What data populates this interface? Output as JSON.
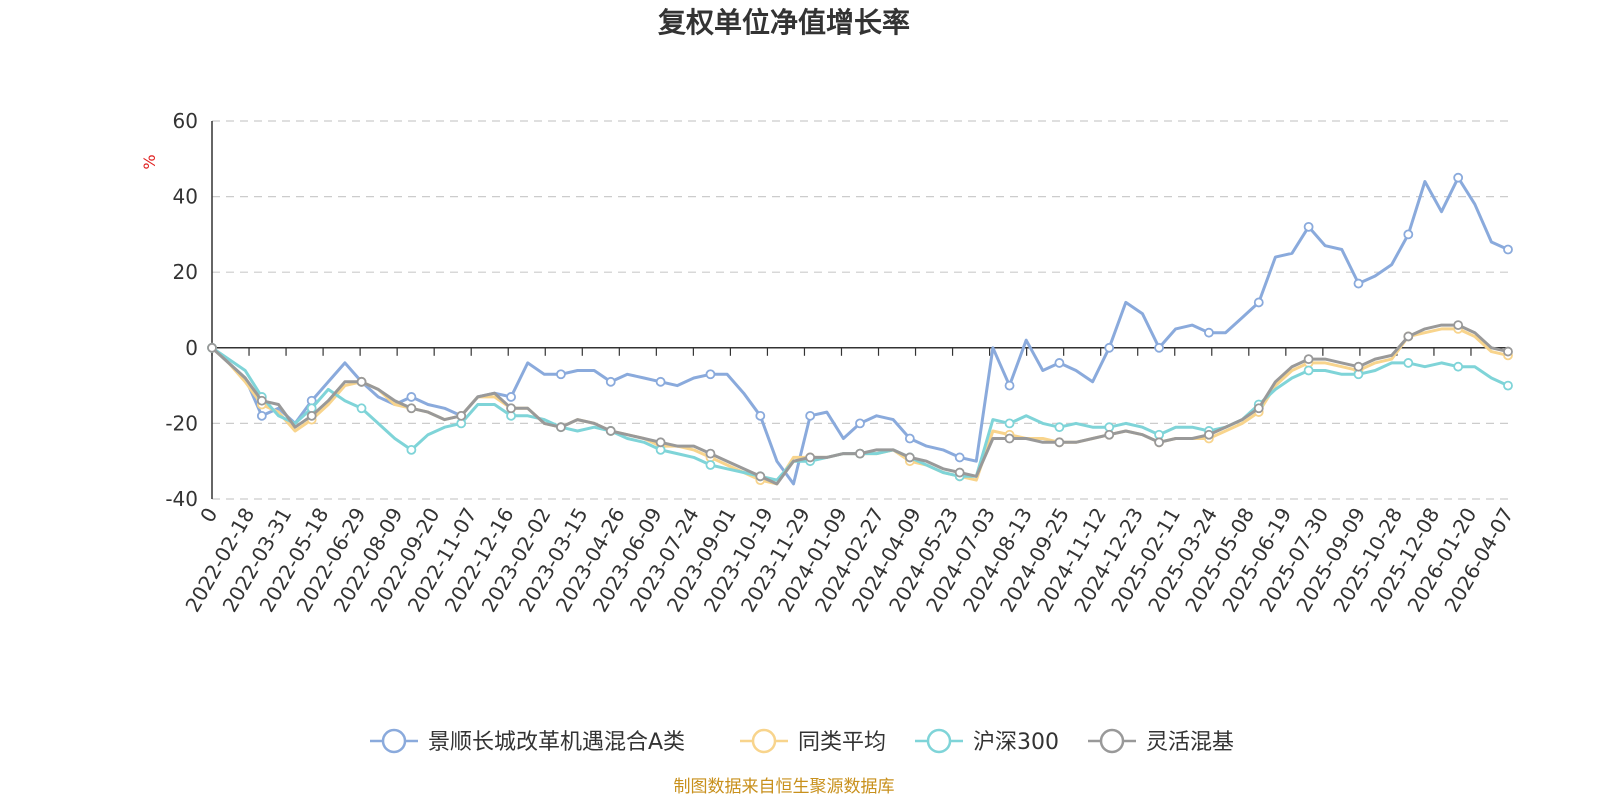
{
  "chart_data": {
    "type": "line",
    "title": "复权单位净值增长率",
    "ylabel": "%",
    "ylim": [
      -40,
      60
    ],
    "yticks": [
      "60",
      "40",
      "20",
      "0",
      "-20",
      "-40"
    ],
    "x_tick_labels": [
      "0",
      "2022-02-18",
      "2022-03-31",
      "2022-05-18",
      "2022-06-29",
      "2022-08-09",
      "2022-09-20",
      "2022-11-07",
      "2022-12-16",
      "2023-02-02",
      "2023-03-15",
      "2023-04-26",
      "2023-06-09",
      "2023-07-24",
      "2023-09-01",
      "2023-10-19",
      "2023-11-29",
      "2024-01-09",
      "2024-02-27",
      "2024-04-09",
      "2024-05-23",
      "2024-07-03",
      "2024-08-13",
      "2024-09-25",
      "2024-11-12",
      "2024-12-23",
      "2025-02-11",
      "2025-03-24",
      "2025-05-08",
      "2025-06-19",
      "2025-07-30",
      "2025-09-09",
      "2025-10-28",
      "2025-12-08",
      "2026-01-20",
      "2026-04-07"
    ],
    "source": "制图数据来自恒生聚源数据库",
    "series": [
      {
        "name": "景顺长城改革机遇混合A类",
        "color": "#8aaadc",
        "values": [
          0,
          -4,
          -8,
          -18,
          -16,
          -20,
          -14,
          -9,
          -4,
          -9,
          -13,
          -15,
          -13,
          -15,
          -16,
          -18,
          -13,
          -12,
          -13,
          -4,
          -7,
          -7,
          -6,
          -6,
          -9,
          -7,
          -8,
          -9,
          -10,
          -8,
          -7,
          -7,
          -12,
          -18,
          -30,
          -36,
          -18,
          -17,
          -24,
          -20,
          -18,
          -19,
          -24,
          -26,
          -27,
          -29,
          -30,
          0,
          -10,
          2,
          -6,
          -4,
          -6,
          -9,
          0,
          12,
          9,
          0,
          5,
          6,
          4,
          4,
          8,
          12,
          24,
          25,
          32,
          27,
          26,
          17,
          19,
          22,
          30,
          44,
          36,
          45,
          38,
          28,
          26
        ]
      },
      {
        "name": "同类平均",
        "color": "#f8d48c",
        "values": [
          0,
          -4,
          -9,
          -15,
          -17,
          -22,
          -19,
          -15,
          -10,
          -9,
          -11,
          -15,
          -16,
          -17,
          -19,
          -18,
          -13,
          -13,
          -16,
          -16,
          -20,
          -21,
          -19,
          -20,
          -22,
          -23,
          -24,
          -26,
          -26,
          -27,
          -29,
          -31,
          -33,
          -35,
          -36,
          -29,
          -29,
          -29,
          -28,
          -28,
          -28,
          -27,
          -30,
          -31,
          -33,
          -34,
          -35,
          -22,
          -23,
          -24,
          -24,
          -25,
          -25,
          -24,
          -23,
          -22,
          -23,
          -25,
          -24,
          -24,
          -24,
          -22,
          -20,
          -17,
          -10,
          -6,
          -4,
          -4,
          -5,
          -6,
          -4,
          -3,
          3,
          4,
          5,
          5,
          3,
          -1,
          -2
        ]
      },
      {
        "name": "沪深300",
        "color": "#7fd4d8",
        "values": [
          0,
          -3,
          -6,
          -13,
          -18,
          -20,
          -16,
          -11,
          -14,
          -16,
          -20,
          -24,
          -27,
          -23,
          -21,
          -20,
          -15,
          -15,
          -18,
          -18,
          -19,
          -21,
          -22,
          -21,
          -22,
          -24,
          -25,
          -27,
          -28,
          -29,
          -31,
          -32,
          -33,
          -34,
          -35,
          -30,
          -30,
          -29,
          -28,
          -28,
          -28,
          -27,
          -29,
          -31,
          -33,
          -34,
          -34,
          -19,
          -20,
          -18,
          -20,
          -21,
          -20,
          -21,
          -21,
          -20,
          -21,
          -23,
          -21,
          -21,
          -22,
          -21,
          -19,
          -15,
          -11,
          -8,
          -6,
          -6,
          -7,
          -7,
          -6,
          -4,
          -4,
          -5,
          -4,
          -5,
          -5,
          -8,
          -10
        ]
      },
      {
        "name": "灵活混基",
        "color": "#999999",
        "values": [
          0,
          -4,
          -8,
          -14,
          -15,
          -21,
          -18,
          -14,
          -9,
          -9,
          -11,
          -14,
          -16,
          -17,
          -19,
          -18,
          -13,
          -12,
          -16,
          -16,
          -20,
          -21,
          -19,
          -20,
          -22,
          -23,
          -24,
          -25,
          -26,
          -26,
          -28,
          -30,
          -32,
          -34,
          -36,
          -30,
          -29,
          -29,
          -28,
          -28,
          -27,
          -27,
          -29,
          -30,
          -32,
          -33,
          -34,
          -24,
          -24,
          -24,
          -25,
          -25,
          -25,
          -24,
          -23,
          -22,
          -23,
          -25,
          -24,
          -24,
          -23,
          -21,
          -19,
          -16,
          -9,
          -5,
          -3,
          -3,
          -4,
          -5,
          -3,
          -2,
          3,
          5,
          6,
          6,
          4,
          0,
          -1
        ]
      }
    ]
  }
}
